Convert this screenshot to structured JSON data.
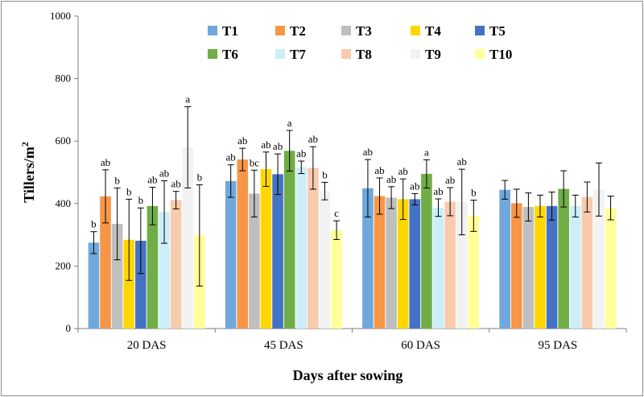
{
  "chart_data": {
    "type": "bar",
    "xlabel": "Days after sowing",
    "ylabel_main": "Tillers/m",
    "ylabel_sup": "2",
    "ylim": [
      0,
      1000
    ],
    "yticks": [
      0,
      200,
      400,
      600,
      800,
      1000
    ],
    "grid": false,
    "legend_position": "top",
    "categories": [
      "20 DAS",
      "45 DAS",
      "60 DAS",
      "95 DAS"
    ],
    "series": [
      {
        "name": "T1",
        "color": "#6FA8DC",
        "values": [
          275,
          472,
          449,
          444
        ],
        "errors": [
          35,
          52,
          92,
          30
        ],
        "letters": [
          "b",
          "ab",
          "ab",
          ""
        ]
      },
      {
        "name": "T2",
        "color": "#F79646",
        "values": [
          423,
          541,
          424,
          401
        ],
        "errors": [
          85,
          36,
          58,
          45
        ],
        "letters": [
          "ab",
          "ab",
          "ab",
          ""
        ]
      },
      {
        "name": "T3",
        "color": "#BFBFBF",
        "values": [
          335,
          432,
          419,
          389
        ],
        "errors": [
          115,
          75,
          35,
          45
        ],
        "letters": [
          "b",
          "bc",
          "ab",
          ""
        ]
      },
      {
        "name": "T4",
        "color": "#FFD700",
        "values": [
          284,
          510,
          414,
          392
        ],
        "errors": [
          130,
          55,
          65,
          35
        ],
        "letters": [
          "b",
          "ab",
          "ab",
          ""
        ]
      },
      {
        "name": "T5",
        "color": "#4472C4",
        "values": [
          281,
          494,
          414,
          392
        ],
        "errors": [
          105,
          65,
          18,
          45
        ],
        "letters": [
          "b",
          "ab",
          "ab",
          ""
        ]
      },
      {
        "name": "T6",
        "color": "#70AD47",
        "values": [
          392,
          569,
          495,
          447
        ],
        "errors": [
          60,
          65,
          45,
          58
        ],
        "letters": [
          "ab",
          "a",
          "a",
          ""
        ]
      },
      {
        "name": "T7",
        "color": "#CCEEF9",
        "values": [
          373,
          516,
          387,
          392
        ],
        "errors": [
          100,
          20,
          28,
          35
        ],
        "letters": [
          "ab",
          "ab",
          "ab",
          ""
        ]
      },
      {
        "name": "T8",
        "color": "#F8CBAD",
        "values": [
          411,
          514,
          406,
          421
        ],
        "errors": [
          28,
          68,
          45,
          48
        ],
        "letters": [
          "ab",
          "ab",
          "ab",
          ""
        ]
      },
      {
        "name": "T9",
        "color": "#F2F2F2",
        "values": [
          580,
          440,
          405,
          445
        ],
        "errors": [
          130,
          28,
          105,
          85
        ],
        "letters": [
          "a",
          "b",
          "ab",
          ""
        ]
      },
      {
        "name": "T10",
        "color": "#FFFF99",
        "values": [
          298,
          315,
          361,
          386
        ],
        "errors": [
          162,
          30,
          50,
          38
        ],
        "letters": [
          "b",
          "c",
          "b",
          ""
        ]
      }
    ]
  }
}
